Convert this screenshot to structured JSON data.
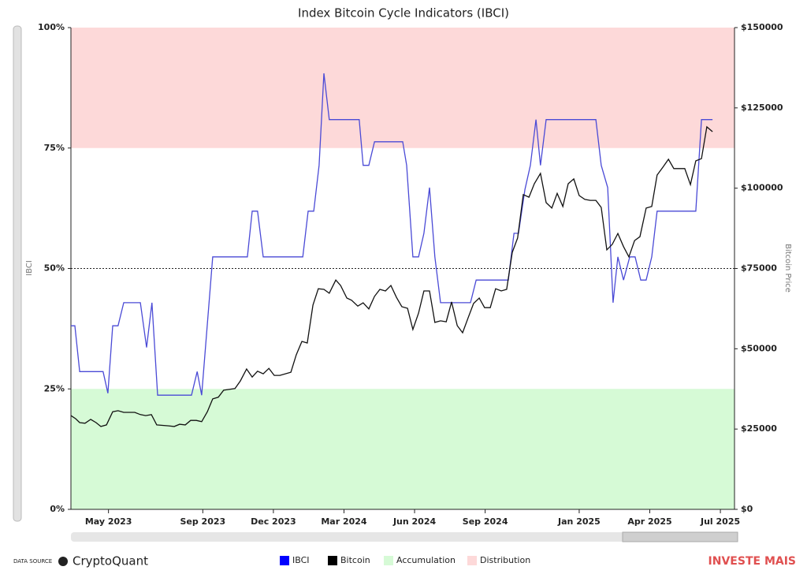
{
  "chart_data": {
    "type": "line",
    "title": "Index Bitcoin Cycle Indicators (IBCI)",
    "y_label": "IBCI",
    "y2_label": "Bitcoin Price",
    "xlim": [
      2023.2,
      2025.55
    ],
    "xticks": [
      {
        "value": 2023.333,
        "label": "May 2023"
      },
      {
        "value": 2023.667,
        "label": "Sep 2023"
      },
      {
        "value": 2023.917,
        "label": "Dec 2023"
      },
      {
        "value": 2024.167,
        "label": "Mar 2024"
      },
      {
        "value": 2024.417,
        "label": "Jun 2024"
      },
      {
        "value": 2024.667,
        "label": "Sep 2024"
      },
      {
        "value": 2025.0,
        "label": "Jan 2025"
      },
      {
        "value": 2025.25,
        "label": "Apr 2025"
      },
      {
        "value": 2025.5,
        "label": "Jul 2025"
      }
    ],
    "ylim": [
      0,
      100
    ],
    "yticks": [
      {
        "value": 0,
        "label": "0%"
      },
      {
        "value": 25,
        "label": "25%"
      },
      {
        "value": 50,
        "label": "50%"
      },
      {
        "value": 75,
        "label": "75%"
      },
      {
        "value": 100,
        "label": "100%"
      }
    ],
    "y2lim": [
      0,
      150000
    ],
    "y2ticks": [
      {
        "value": 0,
        "label": "$0"
      },
      {
        "value": 25000,
        "label": "$25000"
      },
      {
        "value": 50000,
        "label": "$50000"
      },
      {
        "value": 75000,
        "label": "$75000"
      },
      {
        "value": 100000,
        "label": "$100000"
      },
      {
        "value": 125000,
        "label": "$125000"
      },
      {
        "value": 150000,
        "label": "$150000"
      }
    ],
    "reference_line": 50,
    "bands": [
      {
        "name": "Accumulation",
        "from": 0,
        "to": 25,
        "color": "#d6fad6"
      },
      {
        "name": "Distribution",
        "from": 75,
        "to": 100,
        "color": "#fdd9d9"
      }
    ],
    "series": [
      {
        "name": "IBCI",
        "color": "#0000ff",
        "line_color": "#4a4ad6",
        "x": [
          2023.2,
          2023.214,
          2023.231,
          2023.314,
          2023.331,
          2023.348,
          2023.367,
          2023.387,
          2023.446,
          2023.468,
          2023.487,
          2023.507,
          2023.627,
          2023.647,
          2023.663,
          2023.702,
          2023.825,
          2023.842,
          2023.861,
          2023.881,
          2024.021,
          2024.04,
          2024.06,
          2024.079,
          2024.096,
          2024.115,
          2024.221,
          2024.235,
          2024.255,
          2024.275,
          2024.375,
          2024.389,
          2024.411,
          2024.431,
          2024.45,
          2024.47,
          2024.489,
          2024.509,
          2024.615,
          2024.635,
          2024.749,
          2024.769,
          2024.785,
          2024.808,
          2024.827,
          2024.847,
          2024.863,
          2024.883,
          2025.059,
          2025.078,
          2025.101,
          2025.12,
          2025.137,
          2025.157,
          2025.179,
          2025.198,
          2025.218,
          2025.237,
          2025.257,
          2025.276,
          2025.413,
          2025.433,
          2025.472
        ],
        "values": [
          38.1,
          38.1,
          28.6,
          28.6,
          24.1,
          38.1,
          38.1,
          42.9,
          42.9,
          33.6,
          42.9,
          23.7,
          23.7,
          28.6,
          23.7,
          52.4,
          52.4,
          61.9,
          61.9,
          52.4,
          52.4,
          61.9,
          61.9,
          71.4,
          90.5,
          80.9,
          80.9,
          71.4,
          71.4,
          76.3,
          76.3,
          71.4,
          52.4,
          52.4,
          57.3,
          66.8,
          52.4,
          42.9,
          42.9,
          47.6,
          47.6,
          57.3,
          57.3,
          66.4,
          71.4,
          80.9,
          71.4,
          80.9,
          80.9,
          71.4,
          66.8,
          42.9,
          52.4,
          47.6,
          52.4,
          52.4,
          47.6,
          47.6,
          52.4,
          61.9,
          61.9,
          80.9,
          80.9
        ]
      },
      {
        "name": "Bitcoin",
        "color": "#000000",
        "line_color": "#111111",
        "axis": "y2",
        "x": [
          2023.2,
          2023.217,
          2023.231,
          2023.25,
          2023.27,
          2023.289,
          2023.306,
          2023.326,
          2023.348,
          2023.367,
          2023.387,
          2023.426,
          2023.446,
          2023.465,
          2023.485,
          2023.504,
          2023.546,
          2023.566,
          2023.585,
          2023.605,
          2023.624,
          2023.644,
          2023.663,
          2023.683,
          2023.702,
          2023.722,
          2023.741,
          2023.781,
          2023.8,
          2023.822,
          2023.842,
          2023.861,
          2023.881,
          2023.901,
          2023.92,
          2023.94,
          2023.979,
          2023.998,
          2024.018,
          2024.037,
          2024.057,
          2024.076,
          2024.096,
          2024.115,
          2024.138,
          2024.155,
          2024.177,
          2024.194,
          2024.216,
          2024.235,
          2024.255,
          2024.275,
          2024.294,
          2024.314,
          2024.333,
          2024.353,
          2024.372,
          2024.392,
          2024.411,
          2024.431,
          2024.45,
          2024.47,
          2024.489,
          2024.509,
          2024.529,
          2024.548,
          2024.568,
          2024.587,
          2024.607,
          2024.626,
          2024.646,
          2024.665,
          2024.685,
          2024.704,
          2024.724,
          2024.743,
          2024.763,
          2024.782,
          2024.802,
          2024.822,
          2024.841,
          2024.863,
          2024.883,
          2024.903,
          2024.922,
          2024.942,
          2024.961,
          2024.981,
          2025.0,
          2025.02,
          2025.039,
          2025.059,
          2025.078,
          2025.098,
          2025.117,
          2025.137,
          2025.157,
          2025.176,
          2025.196,
          2025.215,
          2025.237,
          2025.257,
          2025.276,
          2025.296,
          2025.316,
          2025.335,
          2025.374,
          2025.394,
          2025.413,
          2025.433,
          2025.452,
          2025.472
        ],
        "values": [
          29200,
          28200,
          27000,
          26800,
          28000,
          27000,
          25800,
          26300,
          30400,
          30700,
          30200,
          30200,
          29500,
          29200,
          29500,
          26300,
          26000,
          25800,
          26500,
          26300,
          27700,
          27700,
          27300,
          30400,
          34400,
          34900,
          37100,
          37600,
          40000,
          43700,
          41200,
          43000,
          42200,
          43900,
          41700,
          41700,
          42700,
          48100,
          52300,
          51800,
          63600,
          68700,
          68500,
          67300,
          71400,
          69700,
          65800,
          65100,
          63300,
          64300,
          62400,
          66300,
          68500,
          68000,
          69700,
          66000,
          63100,
          62600,
          56000,
          61100,
          68000,
          68000,
          58200,
          58700,
          58400,
          64600,
          57200,
          55000,
          59700,
          64100,
          65800,
          62800,
          62800,
          68700,
          68000,
          68500,
          80000,
          84500,
          98000,
          97200,
          101400,
          104600,
          95500,
          93800,
          98400,
          94300,
          101400,
          102900,
          97700,
          96500,
          96200,
          96200,
          94000,
          80800,
          82500,
          85900,
          81800,
          78600,
          83700,
          84900,
          93800,
          94300,
          104100,
          106500,
          109000,
          106100,
          106100,
          101100,
          108500,
          109200,
          119100,
          117600
        ]
      }
    ],
    "data_source_label": "DATA SOURCE",
    "data_source": "CryptoQuant",
    "brand": "INVESTE MAIS"
  }
}
